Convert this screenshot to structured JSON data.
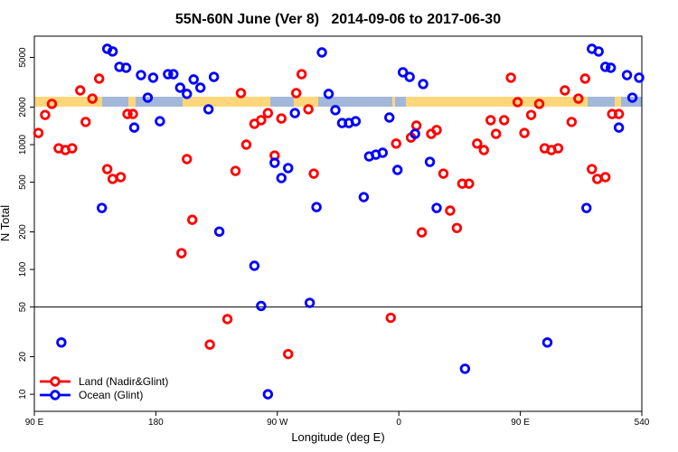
{
  "chart_data": {
    "type": "scatter",
    "title": "55N-60N June (Ver 8)   2014-09-06 to 2017-06-30",
    "x_label": "Longitude (deg E)",
    "y_label": "N Total",
    "xlim": [
      90,
      540
    ],
    "xticks": [
      {
        "value": 90,
        "label": "90 E"
      },
      180,
      {
        "value": 270,
        "label": "90 W"
      },
      {
        "value": 360,
        "label": "0"
      },
      {
        "value": 450,
        "label": "90 E"
      },
      540
    ],
    "ylim": [
      7.3,
      7400
    ],
    "log_y": true,
    "yticks": [
      10,
      20,
      50,
      100,
      200,
      500,
      1000,
      2000,
      5000
    ],
    "hline": 50,
    "legend": "bottom-left",
    "series": [
      {
        "name": "Land (Nadir&Glint)",
        "color": "#ff0000",
        "x": [
          93,
          98,
          103,
          108,
          113,
          118,
          124,
          128,
          133,
          138,
          144,
          148,
          154,
          159,
          163,
          199,
          203,
          207,
          220,
          233,
          239,
          243,
          247,
          253,
          258,
          263,
          268,
          273,
          278,
          284,
          288,
          293,
          297,
          354,
          358,
          369,
          373,
          377,
          384,
          388,
          393,
          398,
          403,
          407,
          412,
          418,
          423,
          428,
          432,
          438,
          443,
          448,
          453,
          458,
          464,
          468,
          473,
          478,
          483,
          488,
          493,
          498,
          503,
          507,
          513,
          518,
          523
        ],
        "values": [
          1240,
          1730,
          2120,
          935,
          905,
          935,
          2720,
          1520,
          2340,
          3380,
          637,
          531,
          549,
          1760,
          1760,
          135,
          766,
          250,
          25,
          40,
          616,
          2590,
          1000,
          1470,
          1570,
          1790,
          818,
          1620,
          21,
          2590,
          3670,
          1920,
          586,
          41,
          1020,
          1140,
          1420,
          198,
          1220,
          1310,
          586,
          296,
          215,
          487,
          487,
          1020,
          905,
          1570,
          1220,
          1570,
          3440,
          2190,
          1240,
          1730,
          2120,
          935,
          905,
          935,
          2720,
          1520,
          2340,
          3380,
          637,
          531,
          549,
          1760,
          1760
        ]
      },
      {
        "name": "Ocean (Glint)",
        "color": "#0000ff",
        "x": [
          110,
          140,
          144,
          148,
          153,
          158,
          164,
          169,
          174,
          178,
          183,
          189,
          193,
          198,
          203,
          208,
          213,
          219,
          223,
          227,
          253,
          258,
          263,
          268,
          273,
          278,
          283,
          294,
          299,
          303,
          308,
          313,
          318,
          323,
          328,
          334,
          338,
          343,
          348,
          353,
          359,
          363,
          368,
          372,
          378,
          383,
          388,
          409,
          470,
          499,
          503,
          508,
          513,
          517,
          523,
          529,
          533,
          538
        ],
        "values": [
          26,
          311,
          5860,
          5580,
          4200,
          4130,
          1370,
          3610,
          2380,
          3440,
          1540,
          3670,
          3670,
          2860,
          2550,
          3330,
          2860,
          1920,
          3490,
          201,
          107,
          51,
          10,
          716,
          540,
          649,
          1790,
          54,
          316,
          5480,
          2550,
          1890,
          1490,
          1490,
          1540,
          380,
          805,
          832,
          861,
          1650,
          627,
          3800,
          3490,
          1220,
          3060,
          728,
          311,
          16,
          26,
          311,
          5860,
          5580,
          4200,
          4130,
          1370,
          3610,
          2380,
          3440
        ]
      }
    ]
  }
}
